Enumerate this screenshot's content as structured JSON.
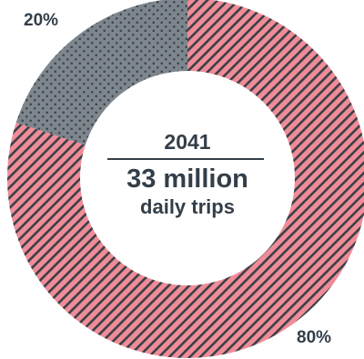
{
  "chart_data": {
    "type": "pie",
    "variant": "donut",
    "categories": [
      "",
      ""
    ],
    "values": [
      80,
      20
    ],
    "data_labels": [
      "80%",
      "20%"
    ],
    "colors": [
      "#ef8c98",
      "#7d858d"
    ],
    "patterns": [
      "diagonal-hatch",
      "dots"
    ],
    "center": {
      "year": "2041",
      "value": "33 million",
      "caption": "daily trips"
    }
  }
}
